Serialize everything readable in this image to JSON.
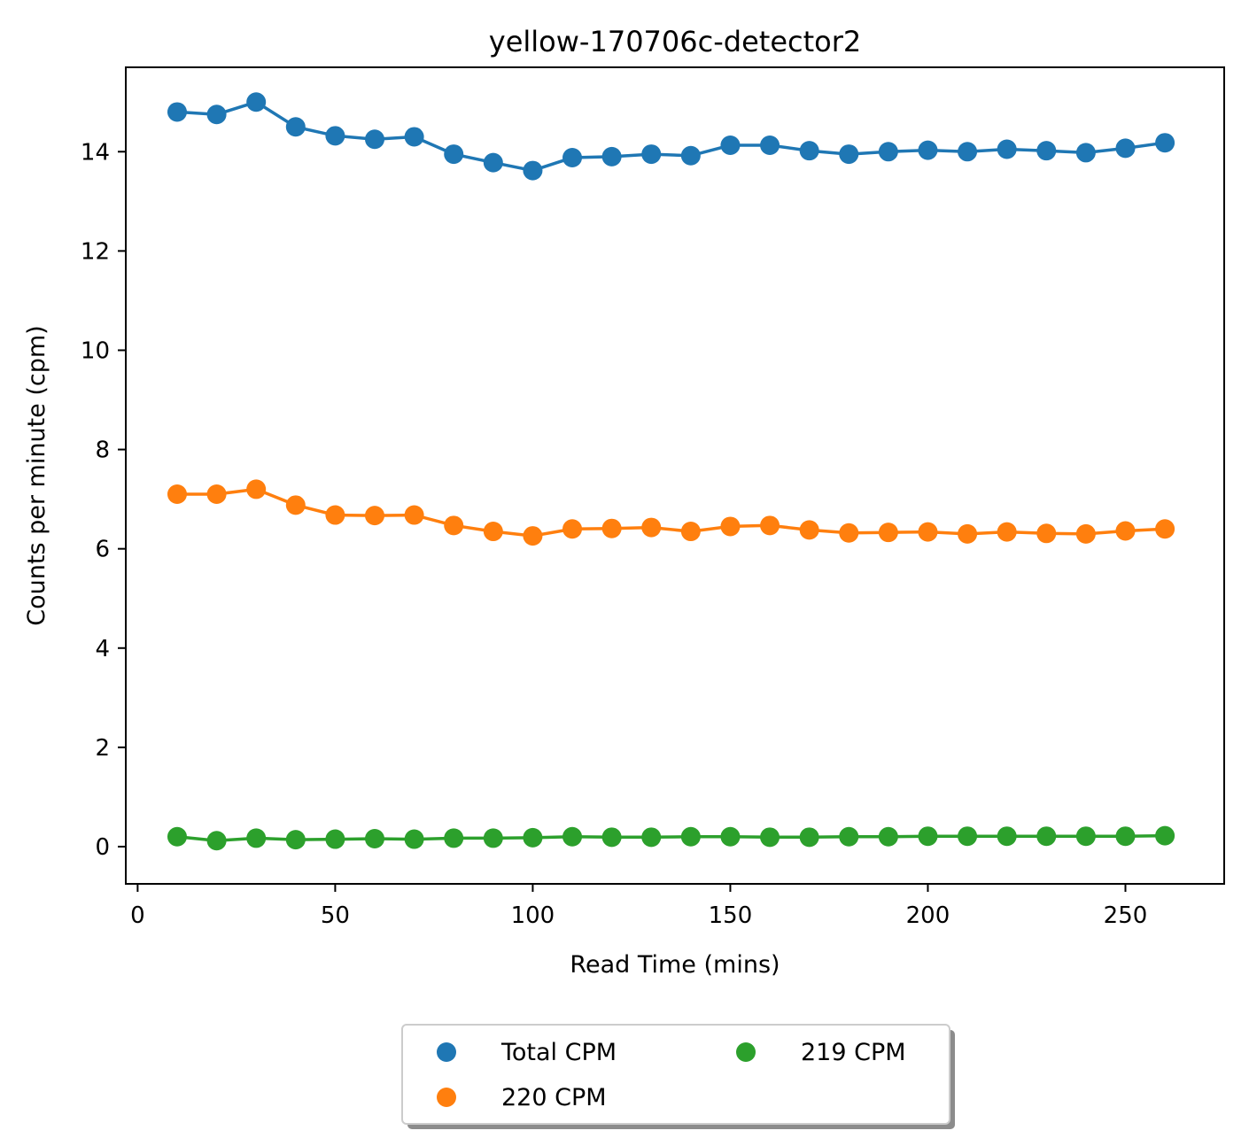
{
  "chart_data": {
    "type": "line",
    "title": "yellow-170706c-detector2",
    "xlabel": "Read Time (mins)",
    "ylabel": "Counts per minute (cpm)",
    "xlim": [
      -3,
      275
    ],
    "ylim": [
      -0.75,
      15.7
    ],
    "xticks": [
      0,
      50,
      100,
      150,
      200,
      250
    ],
    "yticks": [
      0,
      2,
      4,
      6,
      8,
      10,
      12,
      14
    ],
    "grid": false,
    "legend_placement": "bottom-center, below axes, 2 columns",
    "x": [
      10,
      20,
      30,
      40,
      50,
      60,
      70,
      80,
      90,
      100,
      110,
      120,
      130,
      140,
      150,
      160,
      170,
      180,
      190,
      200,
      210,
      220,
      230,
      240,
      250,
      260
    ],
    "series": [
      {
        "name": "Total CPM",
        "color": "#1f77b4",
        "values": [
          14.8,
          14.75,
          15.0,
          14.5,
          14.32,
          14.25,
          14.3,
          13.95,
          13.78,
          13.62,
          13.88,
          13.9,
          13.95,
          13.92,
          14.13,
          14.13,
          14.02,
          13.95,
          14.0,
          14.03,
          14.0,
          14.05,
          14.02,
          13.98,
          14.07,
          14.18
        ]
      },
      {
        "name": "220 CPM",
        "color": "#ff7f0e",
        "values": [
          7.1,
          7.1,
          7.2,
          6.88,
          6.68,
          6.67,
          6.68,
          6.47,
          6.35,
          6.26,
          6.4,
          6.41,
          6.43,
          6.35,
          6.45,
          6.47,
          6.38,
          6.32,
          6.33,
          6.34,
          6.3,
          6.34,
          6.31,
          6.3,
          6.36,
          6.4
        ]
      },
      {
        "name": "219 CPM",
        "color": "#2ca02c",
        "values": [
          0.2,
          0.12,
          0.17,
          0.14,
          0.15,
          0.16,
          0.15,
          0.17,
          0.17,
          0.18,
          0.2,
          0.19,
          0.19,
          0.2,
          0.2,
          0.19,
          0.19,
          0.2,
          0.2,
          0.21,
          0.21,
          0.21,
          0.21,
          0.21,
          0.21,
          0.22
        ]
      }
    ]
  }
}
